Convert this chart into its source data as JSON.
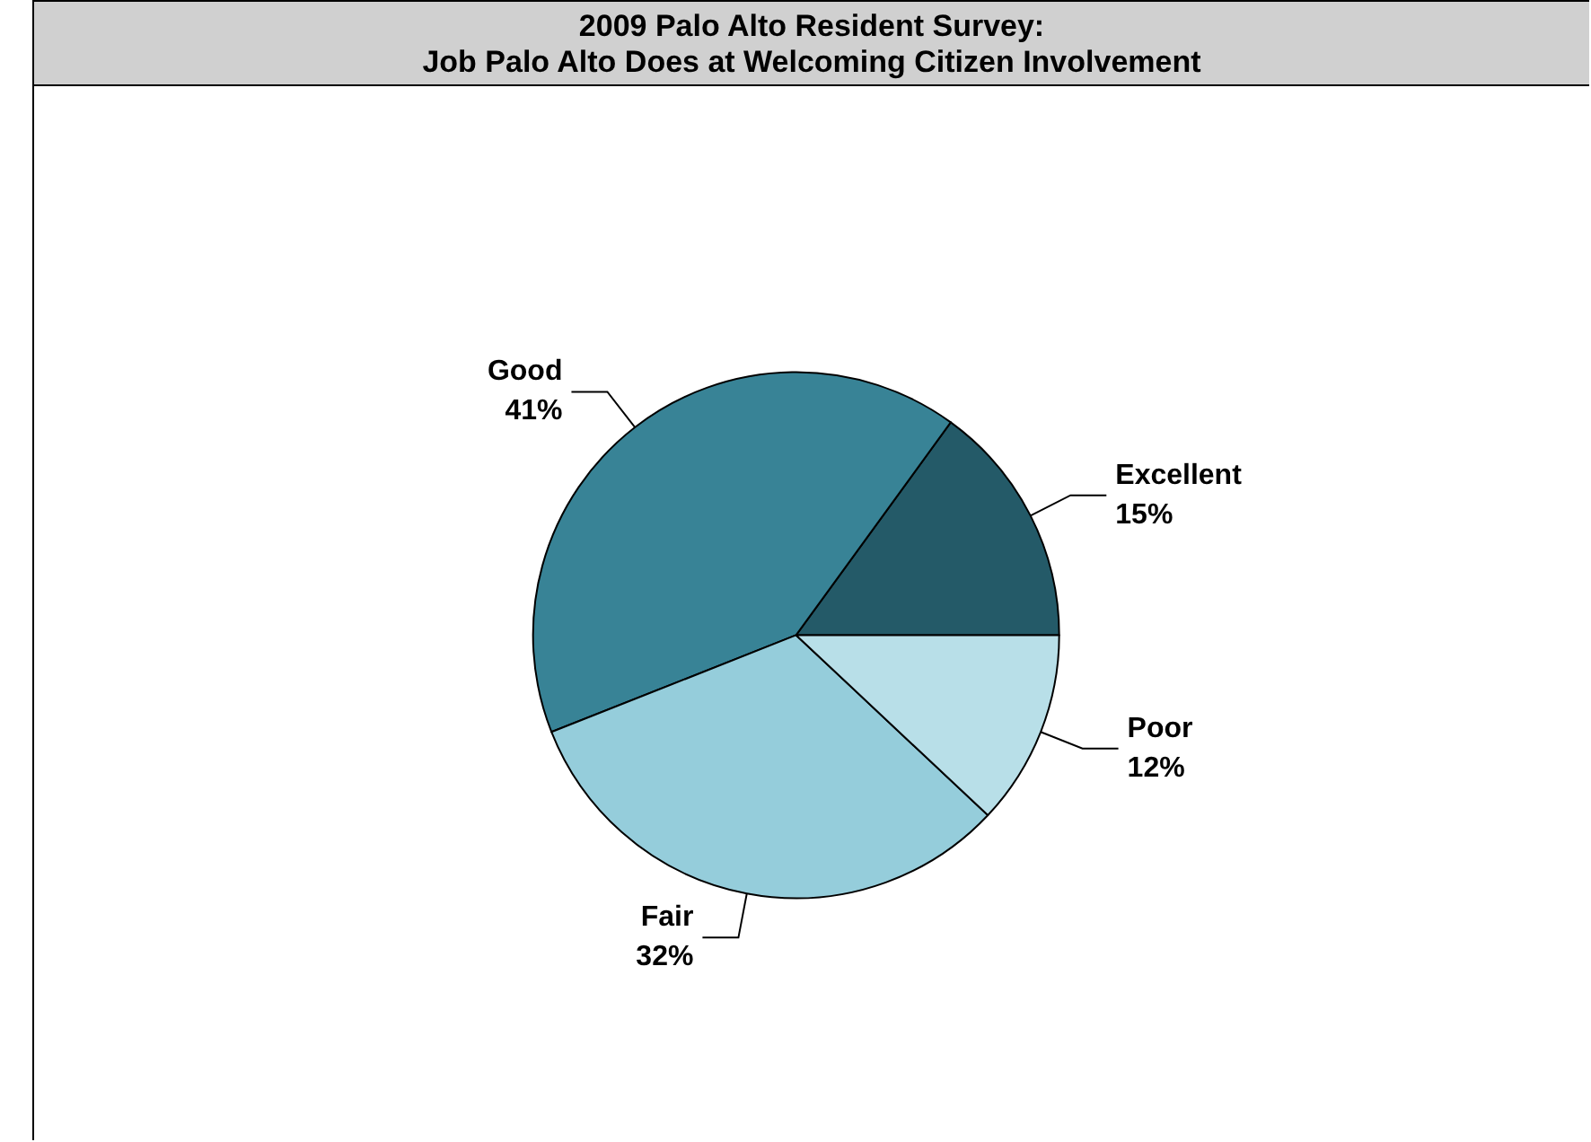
{
  "chart_data": {
    "type": "pie",
    "title": "2009 Palo Alto Resident Survey:\nJob Palo Alto Does at Welcoming Citizen Involvement",
    "categories": [
      "Excellent",
      "Good",
      "Fair",
      "Poor"
    ],
    "values": [
      15,
      41,
      32,
      12
    ],
    "colors": [
      "#245a68",
      "#388396",
      "#95cddb",
      "#b8dfe8"
    ],
    "value_labels": [
      "15%",
      "41%",
      "32%",
      "12%"
    ],
    "legend": false
  }
}
